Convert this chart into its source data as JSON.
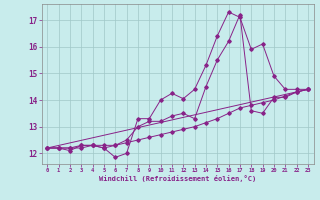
{
  "xlabel": "Windchill (Refroidissement éolien,°C)",
  "ylabel": "",
  "bg_color": "#c8ecec",
  "grid_color": "#a0c8c8",
  "line_color": "#882288",
  "xlim": [
    -0.5,
    23.5
  ],
  "ylim": [
    11.6,
    17.6
  ],
  "xticks": [
    0,
    1,
    2,
    3,
    4,
    5,
    6,
    7,
    8,
    9,
    10,
    11,
    12,
    13,
    14,
    15,
    16,
    17,
    18,
    19,
    20,
    21,
    22,
    23
  ],
  "yticks": [
    12,
    13,
    14,
    15,
    16,
    17
  ],
  "line1_x": [
    0,
    1,
    2,
    3,
    4,
    5,
    6,
    7,
    8,
    9,
    10,
    11,
    12,
    13,
    14,
    15,
    16,
    17,
    18,
    19,
    20,
    21,
    22,
    23
  ],
  "line1_y": [
    12.2,
    12.2,
    12.1,
    12.3,
    12.3,
    12.2,
    11.85,
    12.0,
    13.3,
    13.3,
    14.0,
    14.25,
    14.05,
    14.4,
    15.3,
    16.4,
    17.3,
    17.1,
    15.9,
    16.1,
    14.9,
    14.4,
    14.4,
    14.4
  ],
  "line2_x": [
    0,
    1,
    2,
    3,
    4,
    5,
    6,
    7,
    8,
    9,
    10,
    11,
    12,
    13,
    14,
    15,
    16,
    17,
    18,
    19,
    20,
    21,
    22,
    23
  ],
  "line2_y": [
    12.2,
    12.2,
    12.2,
    12.2,
    12.3,
    12.2,
    12.3,
    12.5,
    13.0,
    13.2,
    13.2,
    13.4,
    13.5,
    13.3,
    14.5,
    15.5,
    16.2,
    17.2,
    13.6,
    13.5,
    14.1,
    14.1,
    14.3,
    14.4
  ],
  "line3_x": [
    0,
    1,
    2,
    3,
    4,
    5,
    6,
    7,
    8,
    9,
    10,
    11,
    12,
    13,
    14,
    15,
    16,
    17,
    18,
    19,
    20,
    21,
    22,
    23
  ],
  "line3_y": [
    12.2,
    12.2,
    12.2,
    12.3,
    12.3,
    12.3,
    12.3,
    12.4,
    12.5,
    12.6,
    12.7,
    12.8,
    12.9,
    13.0,
    13.15,
    13.3,
    13.5,
    13.7,
    13.8,
    13.9,
    14.0,
    14.15,
    14.3,
    14.4
  ],
  "line4_x": [
    0,
    23
  ],
  "line4_y": [
    12.2,
    14.4
  ]
}
